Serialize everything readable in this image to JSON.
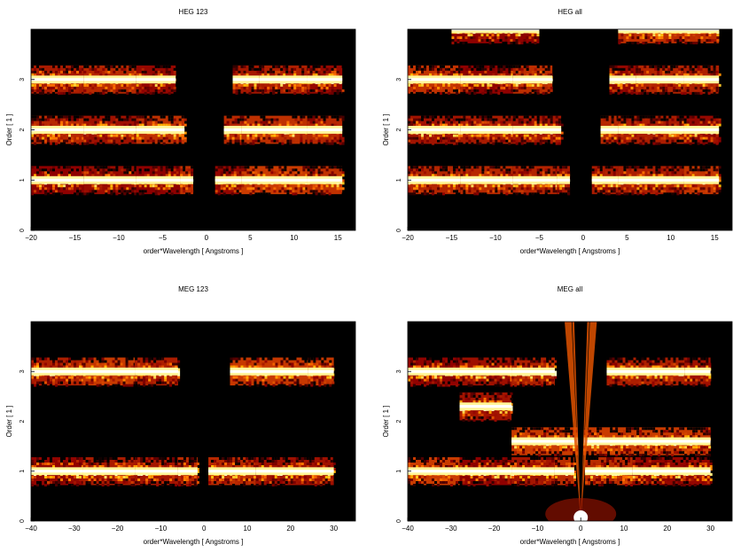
{
  "chart_data": [
    {
      "type": "heatmap",
      "title": "HEG 123",
      "xlabel": "order*Wavelength [ Angstroms ]",
      "ylabel": "Order [ 1 ]",
      "xlim": [
        -20,
        17
      ],
      "ylim": [
        0,
        4
      ],
      "xticks": [
        "−20",
        "−15",
        "−10",
        "−5",
        "0",
        "5",
        "10",
        "15"
      ],
      "xtick_values": [
        -20,
        -15,
        -10,
        -5,
        0,
        5,
        10,
        15
      ],
      "yticks": [
        "0",
        "1",
        "2",
        "3"
      ],
      "ytick_values": [
        0,
        1,
        2,
        3
      ],
      "bands": [
        {
          "order": 1,
          "segments": [
            [
              -20,
              -14
            ],
            [
              -14,
              -8
            ],
            [
              -8,
              -3
            ],
            [
              -3,
              -1.5
            ],
            [
              1,
              4
            ],
            [
              4,
              11.5
            ],
            [
              11.5,
              15.5
            ]
          ]
        },
        {
          "order": 2,
          "segments": [
            [
              -20,
              -14
            ],
            [
              -14,
              -8
            ],
            [
              -8,
              -2.5
            ],
            [
              2,
              4
            ],
            [
              4,
              11.5
            ],
            [
              11.5,
              15.5
            ]
          ]
        },
        {
          "order": 3,
          "segments": [
            [
              -20,
              -14
            ],
            [
              -14,
              -8
            ],
            [
              -8,
              -3.5
            ],
            [
              3,
              6
            ],
            [
              6,
              11.5
            ],
            [
              11.5,
              15.5
            ]
          ]
        }
      ]
    },
    {
      "type": "heatmap",
      "title": "HEG all",
      "xlabel": "order*Wavelength [ Angstroms ]",
      "ylabel": "Order [ 1 ]",
      "xlim": [
        -20,
        17
      ],
      "ylim": [
        0,
        4
      ],
      "xticks": [
        "−20",
        "−15",
        "−10",
        "−5",
        "0",
        "5",
        "10",
        "15"
      ],
      "xtick_values": [
        -20,
        -15,
        -10,
        -5,
        0,
        5,
        10,
        15
      ],
      "yticks": [
        "0",
        "1",
        "2",
        "3"
      ],
      "ytick_values": [
        0,
        1,
        2,
        3
      ],
      "bands": [
        {
          "order": 1,
          "segments": [
            [
              -20,
              -14
            ],
            [
              -14,
              -8
            ],
            [
              -8,
              -3
            ],
            [
              -3,
              -1.5
            ],
            [
              1,
              4
            ],
            [
              4,
              11.5
            ],
            [
              11.5,
              15.5
            ]
          ]
        },
        {
          "order": 2,
          "segments": [
            [
              -20,
              -14
            ],
            [
              -14,
              -8
            ],
            [
              -8,
              -2.5
            ],
            [
              2,
              4
            ],
            [
              4,
              11.5
            ],
            [
              11.5,
              15.5
            ]
          ]
        },
        {
          "order": 3,
          "segments": [
            [
              -20,
              -14
            ],
            [
              -14,
              -8
            ],
            [
              -8,
              -3.5
            ],
            [
              3,
              6
            ],
            [
              6,
              11.5
            ],
            [
              11.5,
              15.5
            ]
          ]
        },
        {
          "order": 4,
          "segments": [
            [
              -15,
              -5
            ],
            [
              4,
              15.5
            ]
          ]
        }
      ]
    },
    {
      "type": "heatmap",
      "title": "MEG 123",
      "xlabel": "order*Wavelength [ Angstroms ]",
      "ylabel": "Order [ 1 ]",
      "xlim": [
        -40,
        35
      ],
      "ylim": [
        0,
        4
      ],
      "xticks": [
        "−40",
        "−30",
        "−20",
        "−10",
        "0",
        "10",
        "20",
        "30"
      ],
      "xtick_values": [
        -40,
        -30,
        -20,
        -10,
        0,
        10,
        20,
        30
      ],
      "yticks": [
        "0",
        "1",
        "2",
        "3"
      ],
      "ytick_values": [
        0,
        1,
        2,
        3
      ],
      "bands": [
        {
          "order": 1,
          "segments": [
            [
              -40,
              -28
            ],
            [
              -28,
              -16
            ],
            [
              -16,
              -6
            ],
            [
              -6,
              -1.5
            ],
            [
              1,
              12
            ],
            [
              12,
              30
            ]
          ]
        },
        {
          "order": 3,
          "segments": [
            [
              -40,
              -28
            ],
            [
              -28,
              -16
            ],
            [
              -16,
              -6
            ],
            [
              6,
              24
            ],
            [
              24,
              30
            ]
          ]
        }
      ]
    },
    {
      "type": "heatmap",
      "title": "MEG all",
      "xlabel": "order*Wavelength [ Angstroms ]",
      "ylabel": "Order [ 1 ]",
      "xlim": [
        -40,
        35
      ],
      "ylim": [
        0,
        4
      ],
      "xticks": [
        "−40",
        "−30",
        "−20",
        "−10",
        "0",
        "10",
        "20",
        "30"
      ],
      "xtick_values": [
        -40,
        -30,
        -20,
        -10,
        0,
        10,
        20,
        30
      ],
      "yticks": [
        "0",
        "1",
        "2",
        "3"
      ],
      "ytick_values": [
        0,
        1,
        2,
        3
      ],
      "bands": [
        {
          "order": 1,
          "segments": [
            [
              -40,
              -28
            ],
            [
              -28,
              -16
            ],
            [
              -16,
              -6
            ],
            [
              -6,
              -1.5
            ],
            [
              1,
              12
            ],
            [
              12,
              30
            ]
          ]
        },
        {
          "order": 1.6,
          "segments": [
            [
              -16,
              30
            ]
          ]
        },
        {
          "order": 2.3,
          "segments": [
            [
              -28,
              -16
            ]
          ]
        },
        {
          "order": 3,
          "segments": [
            [
              -40,
              -28
            ],
            [
              -28,
              -16
            ],
            [
              -16,
              -6
            ],
            [
              6,
              24
            ],
            [
              24,
              30
            ]
          ]
        }
      ]
    }
  ]
}
